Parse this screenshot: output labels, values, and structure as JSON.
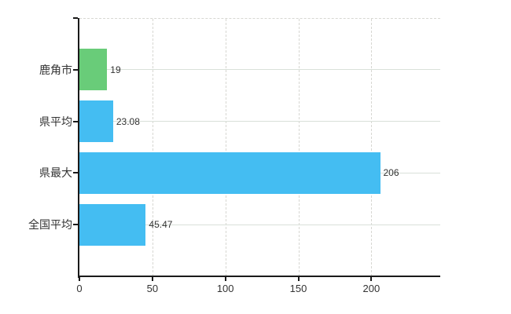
{
  "chart_data": {
    "type": "bar",
    "orientation": "horizontal",
    "categories": [
      "鹿角市",
      "県平均",
      "県最大",
      "全国平均"
    ],
    "values": [
      19,
      23.08,
      206,
      45.47
    ],
    "value_labels": [
      "19",
      "23.08",
      "206",
      "45.47"
    ],
    "series": [
      {
        "name": "",
        "values": [
          19,
          23.08,
          206,
          45.47
        ]
      }
    ],
    "bar_colors": [
      "#69cc79",
      "#44bdf2",
      "#44bdf2",
      "#44bdf2"
    ],
    "xlim": [
      0,
      247.2
    ],
    "x_ticks": [
      0,
      50,
      100,
      150,
      200
    ],
    "x_tick_labels": [
      "0",
      "50",
      "100",
      "150",
      "200"
    ],
    "grid": {
      "vertical_style": "dashed",
      "horizontal_style": "solid",
      "grid_on": true
    },
    "legend": "none"
  },
  "colors": {
    "background": "#ffffff",
    "axis": "#1a1a1a",
    "grid_vertical": "#d7d7d2",
    "grid_horizontal": "#d9e0d9",
    "text": "#333333",
    "bar_green": "#69cc79",
    "bar_blue": "#44bdf2"
  }
}
